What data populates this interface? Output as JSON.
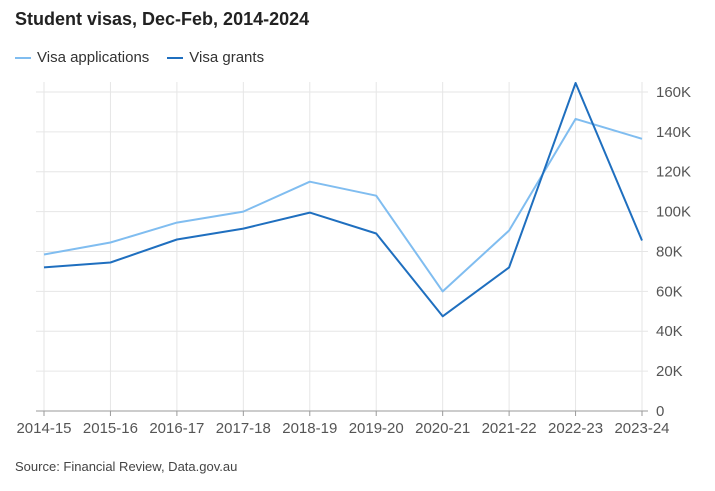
{
  "chart_data": {
    "type": "line",
    "title": "Student visas, Dec-Feb, 2014-2024",
    "source": "Source: Financial Review, Data.gov.au",
    "categories": [
      "2014-15",
      "2015-16",
      "2016-17",
      "2017-18",
      "2018-19",
      "2019-20",
      "2020-21",
      "2021-22",
      "2022-23",
      "2023-24"
    ],
    "series": [
      {
        "name": "Visa applications",
        "color": "#80bdf0",
        "values": [
          78500,
          84500,
          94500,
          100000,
          115000,
          108000,
          60000,
          90500,
          146500,
          136500
        ]
      },
      {
        "name": "Visa grants",
        "color": "#1f6fbf",
        "values": [
          72000,
          74500,
          86000,
          91500,
          99500,
          89000,
          47500,
          72000,
          164500,
          85500
        ]
      }
    ],
    "ylim": [
      0,
      165000
    ],
    "y_ticks": [
      0,
      20000,
      40000,
      60000,
      80000,
      100000,
      120000,
      140000,
      160000
    ],
    "y_tick_labels": [
      "0",
      "20K",
      "40K",
      "60K",
      "80K",
      "100K",
      "120K",
      "140K",
      "160K"
    ],
    "y_axis_position": "right",
    "legend_position": "top-left",
    "grid": true
  }
}
